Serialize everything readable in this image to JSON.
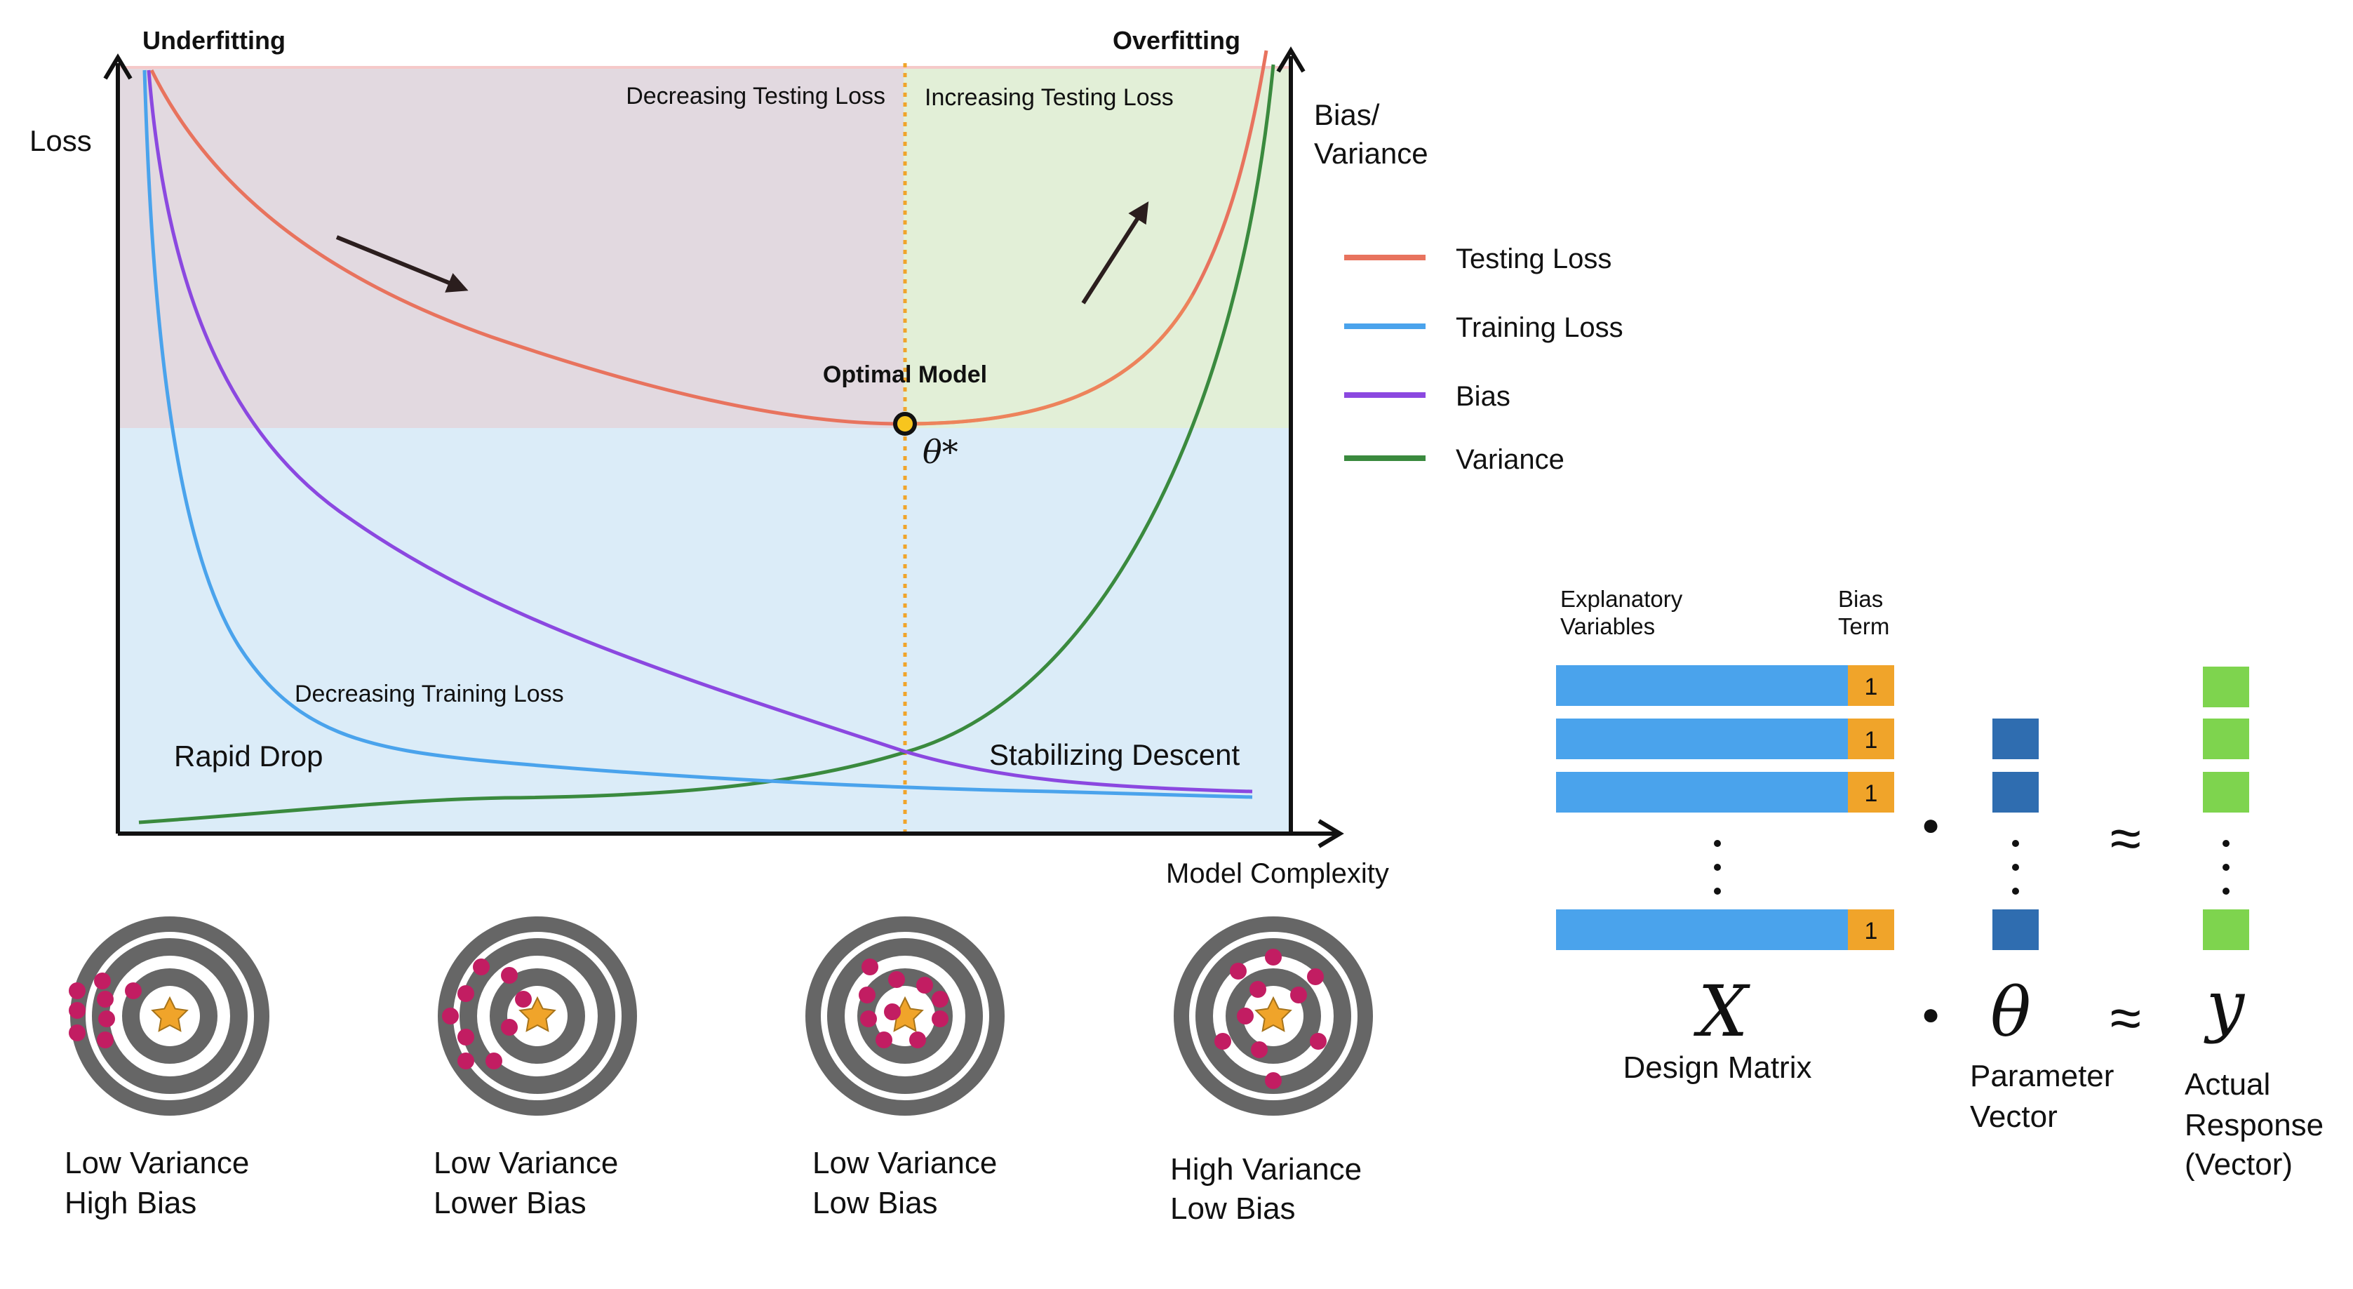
{
  "colors": {
    "testing_loss": "#e8735e",
    "training_loss": "#4aa3ec",
    "bias": "#8b48e0",
    "variance": "#3a8a3e",
    "underfit_region": "#e2d9e0",
    "overfit_region": "#e2efd7",
    "lower_region": "#dbecf8",
    "optimal_line": "#f0a42a",
    "target_ring": "#666666",
    "target_dot": "#c21d62",
    "star": "#f0a42a",
    "matrix_bar": "#4aa3ec",
    "bias_cell": "#f0a42a",
    "param_cell": "#2f6db0",
    "response_cell": "#7ed44e"
  },
  "chart": {
    "underfitting": "Underfitting",
    "overfitting": "Overfitting",
    "y_label": "Loss",
    "y2_label_line1": "Bias/",
    "y2_label_line2": "Variance",
    "x_label": "Model Complexity",
    "decreasing_testing": "Decreasing Testing Loss",
    "increasing_testing": "Increasing Testing Loss",
    "optimal_model": "Optimal Model",
    "theta_star": "θ*",
    "decreasing_training": "Decreasing Training Loss",
    "rapid_drop": "Rapid Drop",
    "stabilizing": "Stabilizing Descent"
  },
  "legend": [
    {
      "label": "Testing Loss",
      "color_key": "testing_loss"
    },
    {
      "label": "Training Loss",
      "color_key": "training_loss"
    },
    {
      "label": "Bias",
      "color_key": "bias"
    },
    {
      "label": "Variance",
      "color_key": "variance"
    }
  ],
  "targets": [
    {
      "line1": "Low Variance",
      "line2": "High Bias"
    },
    {
      "line1": "Low Variance",
      "line2": "Lower Bias"
    },
    {
      "line1": "Low Variance",
      "line2": "Low Bias"
    },
    {
      "line1": "High Variance",
      "line2": "Low Bias"
    }
  ],
  "regression": {
    "explanatory_line1": "Explanatory",
    "explanatory_line2": "Variables",
    "bias_term_line1": "Bias",
    "bias_term_line2": "Term",
    "bias_cell_value": "1",
    "x_symbol": "X",
    "x_caption": "Design Matrix",
    "theta_symbol": "θ",
    "theta_caption_line1": "Parameter",
    "theta_caption_line2": "Vector",
    "y_symbol": "y",
    "y_caption_line1": "Actual",
    "y_caption_line2": "Response",
    "y_caption_line3": "(Vector)",
    "approx": "≈",
    "dot": "●"
  }
}
